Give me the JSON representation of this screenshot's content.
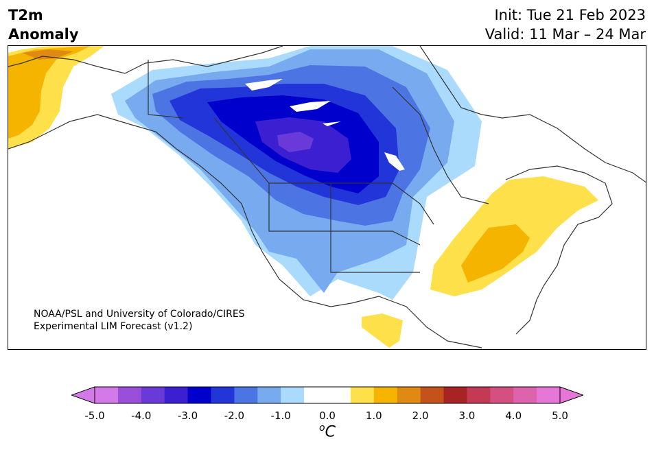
{
  "header": {
    "variable": "T2m",
    "field": "Anomaly",
    "init": "Init: Tue 21 Feb 2023",
    "valid": "Valid: 11 Mar – 24 Mar"
  },
  "credit": {
    "line1": "NOAA/PSL and University of Colorado/CIRES",
    "line2": "Experimental LIM Forecast (v1.2)"
  },
  "colorbar": {
    "unit_prefix": "o",
    "unit": "C",
    "ticks": [
      "-5.0",
      "-4.0",
      "-3.0",
      "-2.0",
      "-1.0",
      "0.0",
      "1.0",
      "2.0",
      "3.0",
      "4.0",
      "5.0"
    ],
    "colors": [
      "#d37ae8",
      "#9a4fdb",
      "#6a3ad8",
      "#3b1fd0",
      "#0000cd",
      "#2235d8",
      "#4d74e3",
      "#78aaf0",
      "#aadafc",
      "#ffffff",
      "#ffffff",
      "#fee04a",
      "#f5b400",
      "#e08a14",
      "#c4521b",
      "#a82424",
      "#c43a54",
      "#d45080",
      "#dc64ac",
      "#e677d8"
    ],
    "under_color": "#d37ae8",
    "over_color": "#e677d8"
  },
  "map": {
    "background": "#ffffff",
    "coast_color": "#333333"
  }
}
